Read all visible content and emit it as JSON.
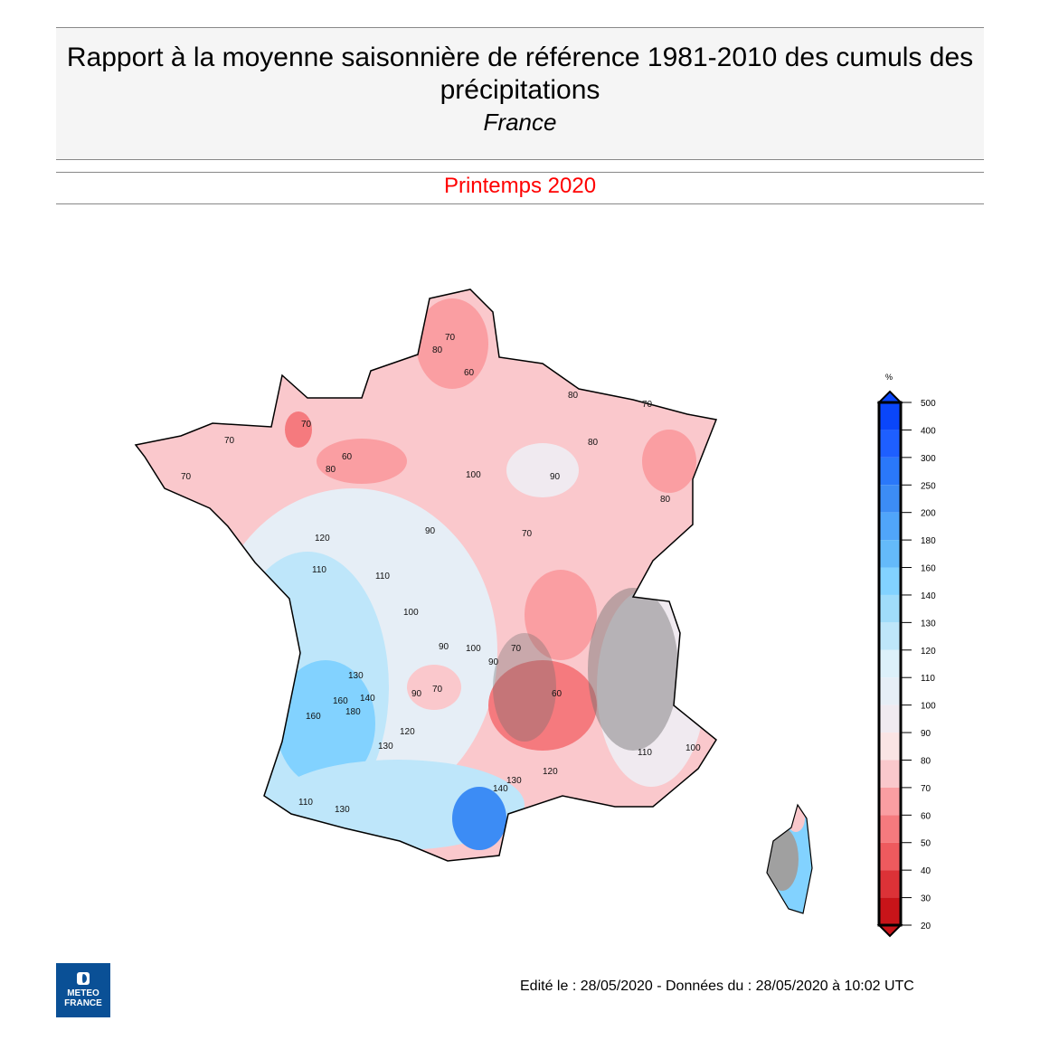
{
  "header": {
    "title": "Rapport à la moyenne saisonnière de référence 1981-2010 des cumuls des précipitations",
    "region": "France"
  },
  "season": "Printemps 2020",
  "legend": {
    "unit": "%",
    "ticks": [
      "500",
      "400",
      "300",
      "250",
      "200",
      "180",
      "160",
      "140",
      "130",
      "120",
      "110",
      "100",
      "90",
      "80",
      "70",
      "60",
      "50",
      "40",
      "30",
      "20"
    ],
    "colors": [
      "#0a46fa",
      "#1e5fff",
      "#2a78fa",
      "#3c8cf5",
      "#50a5fa",
      "#64bafa",
      "#82d2ff",
      "#a0dcfa",
      "#bee6fa",
      "#dcf0fa",
      "#e6eef6",
      "#f0eaf0",
      "#fae4e4",
      "#fac8cc",
      "#fa9ea2",
      "#f57a7e",
      "#ee5a5e",
      "#dc3237",
      "#c81419"
    ]
  },
  "map": {
    "contour_labels": [
      "70",
      "80",
      "60",
      "70",
      "60",
      "70",
      "70",
      "80",
      "90",
      "100",
      "90",
      "70",
      "80",
      "80",
      "80",
      "70",
      "120",
      "110",
      "110",
      "100",
      "90",
      "100",
      "70",
      "60",
      "90",
      "130",
      "140",
      "160",
      "180",
      "160",
      "120",
      "130",
      "130",
      "110",
      "140",
      "130",
      "120",
      "110",
      "100",
      "90",
      "70"
    ]
  },
  "footer": "Edité le : 28/05/2020 - Données du : 28/05/2020 à 10:02 UTC",
  "logo": {
    "line1": "METEO",
    "line2": "FRANCE"
  }
}
